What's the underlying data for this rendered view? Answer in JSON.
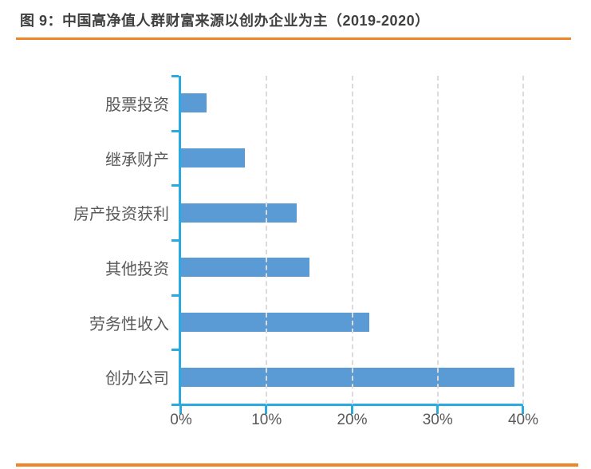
{
  "figure": {
    "title": "图 9：中国高净值人群财富来源以创办企业为主（2019-2020）",
    "accent_rule_color": "#F08426",
    "background_color": "#FFFFFF"
  },
  "chart_data": {
    "type": "bar",
    "orientation": "horizontal",
    "title": "中国高净值人群财富来源以创办企业为主（2019-2020）",
    "categories": [
      "股票投资",
      "继承财产",
      "房产投资获利",
      "其他投资",
      "劳务性收入",
      "创办公司"
    ],
    "values": [
      3,
      7.5,
      13.5,
      15,
      22,
      39
    ],
    "unit": "%",
    "xlabel": "",
    "ylabel": "",
    "xlim": [
      0,
      40
    ],
    "x_ticks": [
      0,
      10,
      20,
      30,
      40
    ],
    "x_tick_labels": [
      "0%",
      "10%",
      "20%",
      "30%",
      "40%"
    ],
    "grid": "vertical-dashed",
    "legend": "none",
    "bar_color": "#5B9BD5",
    "axis_color": "#29ABE2",
    "gridline_color": "#DBDBDB",
    "label_color": "#595959"
  }
}
